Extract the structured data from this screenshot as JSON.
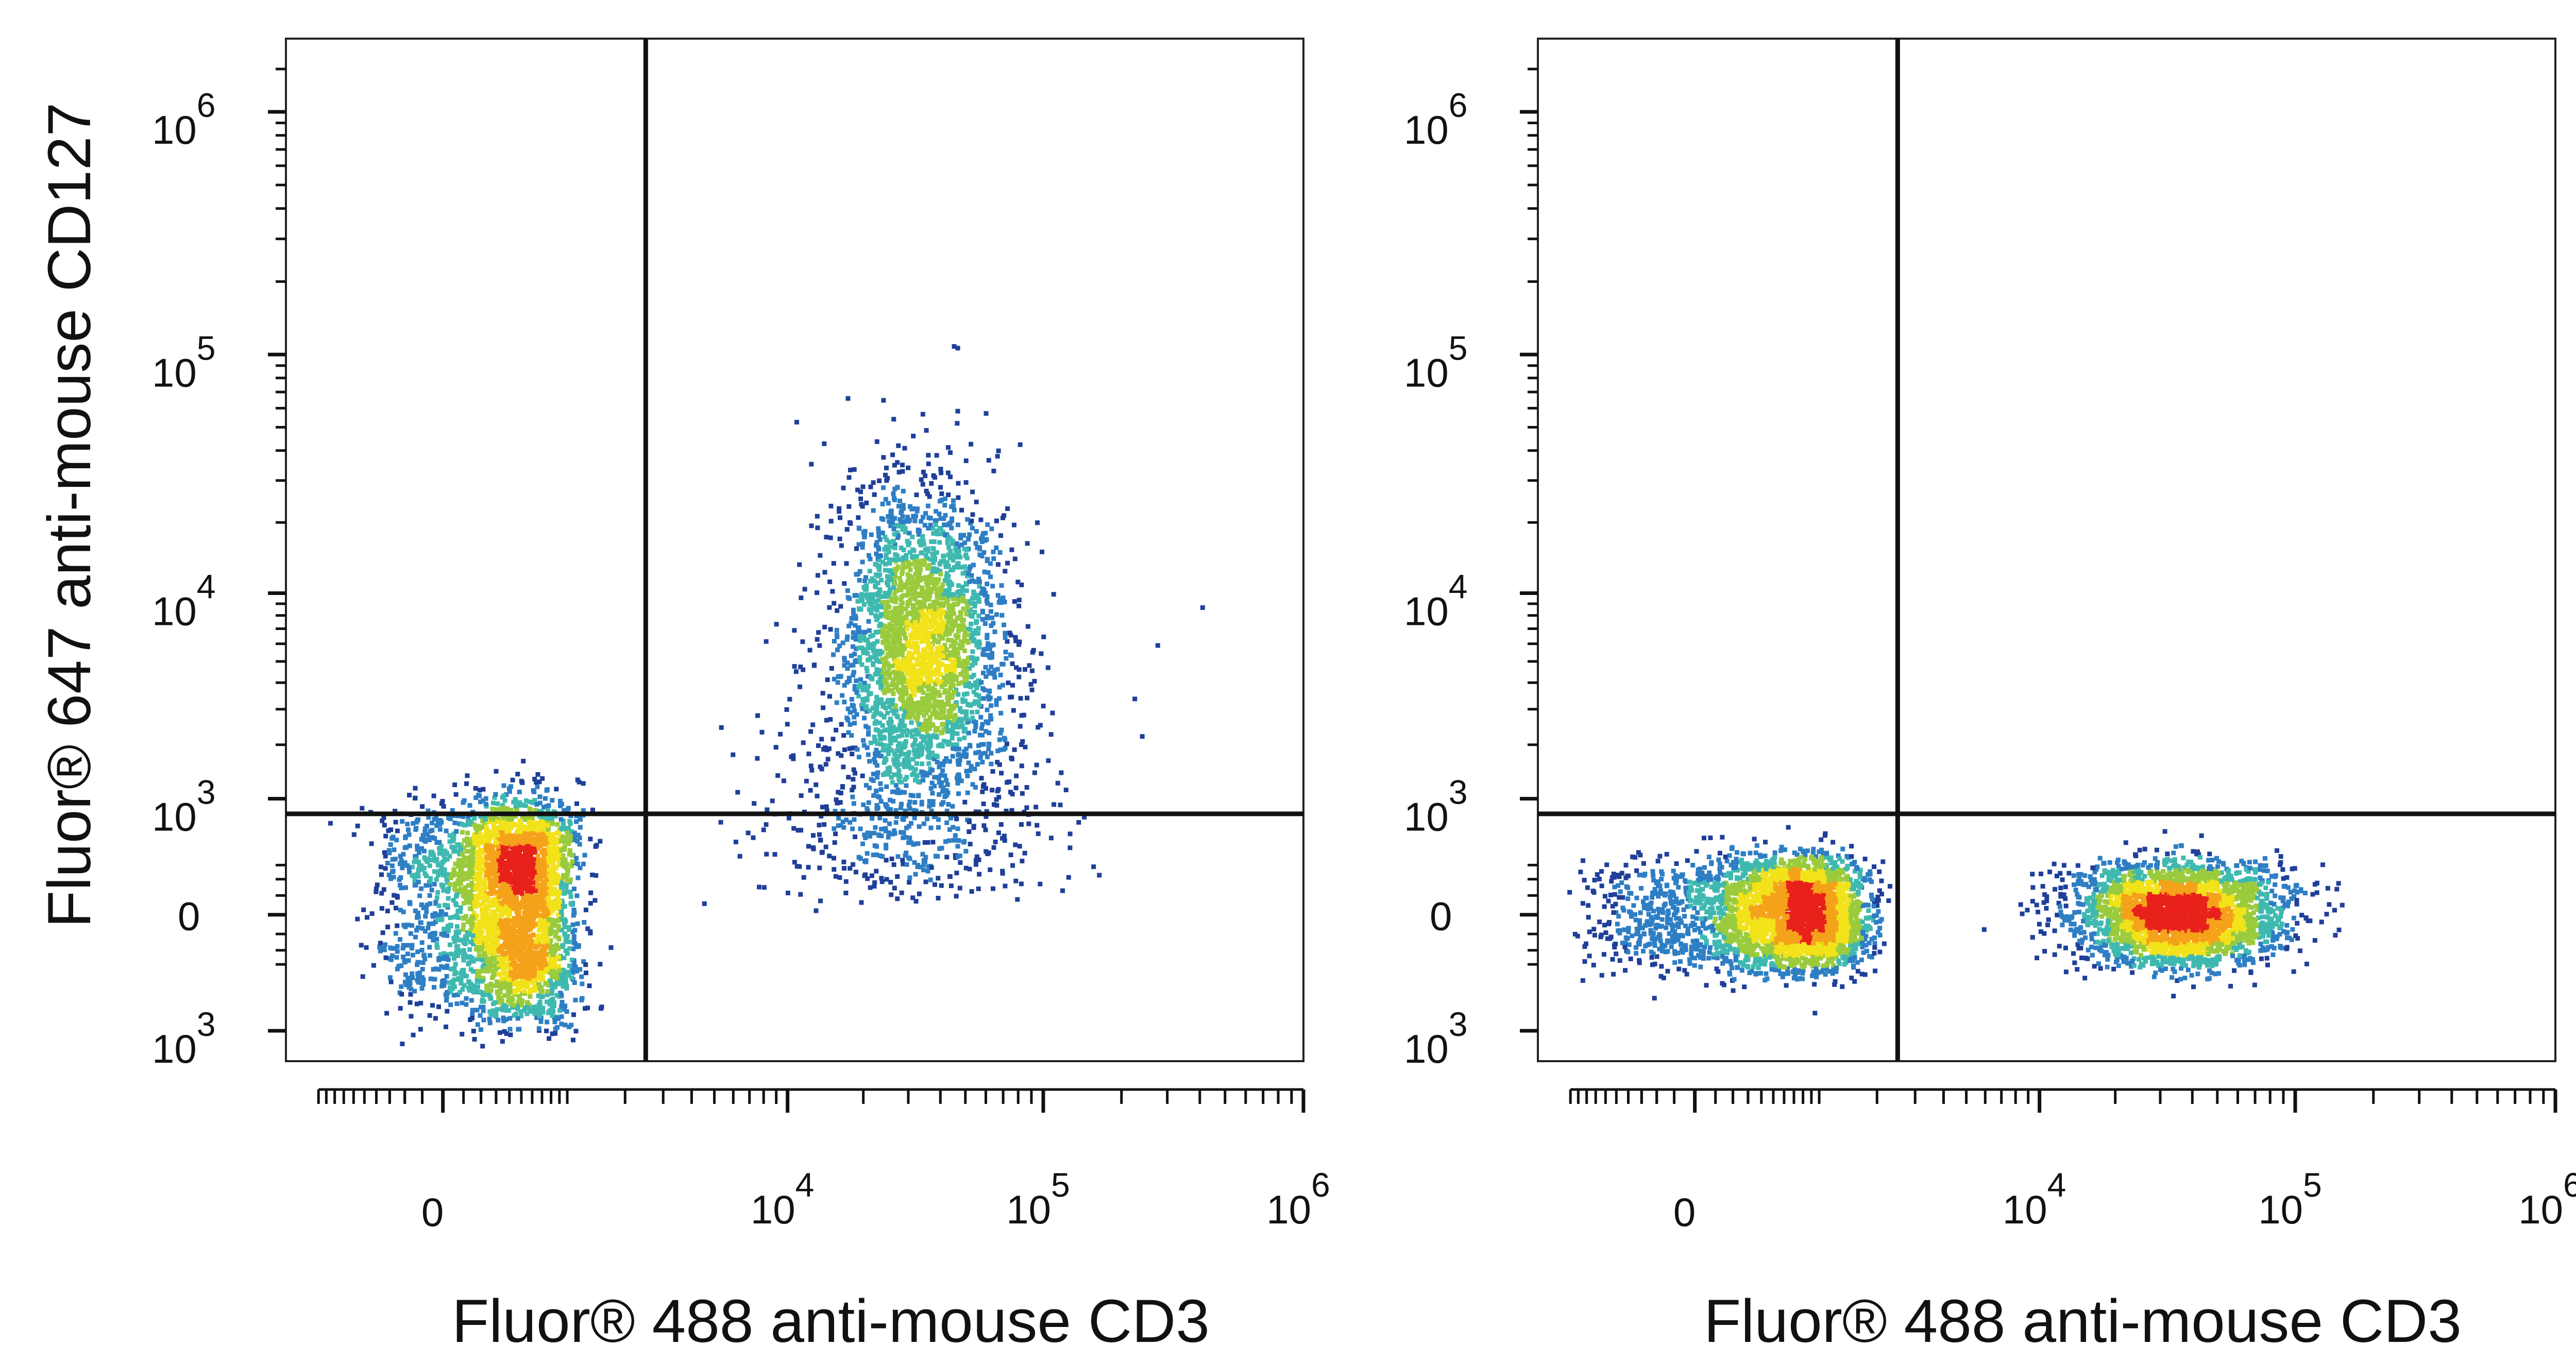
{
  "figure": {
    "ylabel": "Fluor® 647 anti-mouse CD127"
  },
  "chart_data": [
    {
      "type": "scatter",
      "plot_kind": "flow cytometry density dot plot",
      "xlabel": "Fluor® 488 anti-mouse CD3",
      "ylabel": "Fluor® 647 anti-mouse CD127",
      "x_scale": "biexponential",
      "y_scale": "biexponential",
      "x_ticks": [
        {
          "value": 0,
          "base": "0",
          "exp": ""
        },
        {
          "value": 10000,
          "base": "10",
          "exp": "4"
        },
        {
          "value": 100000,
          "base": "10",
          "exp": "5"
        },
        {
          "value": 1000000,
          "base": "10",
          "exp": "6"
        }
      ],
      "y_ticks": [
        {
          "value": -1000,
          "base": "10",
          "exp": "3"
        },
        {
          "value": 0,
          "base": "0",
          "exp": ""
        },
        {
          "value": 1000,
          "base": "10",
          "exp": "3"
        },
        {
          "value": 10000,
          "base": "10",
          "exp": "4"
        },
        {
          "value": 100000,
          "base": "10",
          "exp": "5"
        },
        {
          "value": 1000000,
          "base": "10",
          "exp": "6"
        }
      ],
      "xlim": [
        -1500,
        1000000
      ],
      "ylim": [
        -1500,
        2000000
      ],
      "gates": {
        "x": 2500,
        "y": 800
      },
      "grid": false,
      "density_colors": [
        "#1f3f99",
        "#2e7ec4",
        "#3fb9b0",
        "#9acb3c",
        "#f2e21a",
        "#f5a21b",
        "#e8211b"
      ],
      "populations": [
        {
          "x_center": 400,
          "x_spread": 320,
          "y_center": 100,
          "y_spread": 420,
          "count": 3400
        },
        {
          "x_center": 33000,
          "x_spread": 0.16,
          "y_center": 6500,
          "y_spread": 0.34,
          "count": 2400
        },
        {
          "x_center": 28000,
          "x_spread": 0.3,
          "y_center": 1000,
          "y_spread": 0.45,
          "count": 650
        }
      ]
    },
    {
      "type": "scatter",
      "plot_kind": "flow cytometry density dot plot",
      "xlabel": "Fluor® 488 anti-mouse CD3",
      "ylabel": "",
      "x_scale": "biexponential",
      "y_scale": "biexponential",
      "x_ticks": [
        {
          "value": 0,
          "base": "0",
          "exp": ""
        },
        {
          "value": 10000,
          "base": "10",
          "exp": "4"
        },
        {
          "value": 100000,
          "base": "10",
          "exp": "5"
        },
        {
          "value": 1000000,
          "base": "10",
          "exp": "6"
        }
      ],
      "y_ticks": [
        {
          "value": -1000,
          "base": "10",
          "exp": "3"
        },
        {
          "value": 0,
          "base": "0",
          "exp": ""
        },
        {
          "value": 1000,
          "base": "10",
          "exp": "3"
        },
        {
          "value": 10000,
          "base": "10",
          "exp": "4"
        },
        {
          "value": 100000,
          "base": "10",
          "exp": "5"
        },
        {
          "value": 1000000,
          "base": "10",
          "exp": "6"
        }
      ],
      "xlim": [
        -1500,
        1000000
      ],
      "ylim": [
        -1500,
        2000000
      ],
      "gates": {
        "x": 2500,
        "y": 800
      },
      "grid": false,
      "density_colors": [
        "#1f3f99",
        "#2e7ec4",
        "#3fb9b0",
        "#9acb3c",
        "#f2e21a",
        "#f5a21b",
        "#e8211b"
      ],
      "populations": [
        {
          "x_center": 600,
          "x_spread": 520,
          "y_center": 20,
          "y_spread": 170,
          "count": 3200
        },
        {
          "x_center": 35000,
          "x_spread": 0.2,
          "y_center": 20,
          "y_spread": 150,
          "count": 3000
        }
      ]
    }
  ]
}
